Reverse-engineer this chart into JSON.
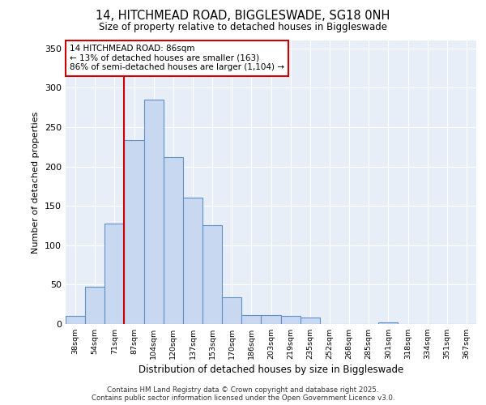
{
  "title1": "14, HITCHMEAD ROAD, BIGGLESWADE, SG18 0NH",
  "title2": "Size of property relative to detached houses in Biggleswade",
  "xlabel": "Distribution of detached houses by size in Biggleswade",
  "ylabel": "Number of detached properties",
  "categories": [
    "38sqm",
    "54sqm",
    "71sqm",
    "87sqm",
    "104sqm",
    "120sqm",
    "137sqm",
    "153sqm",
    "170sqm",
    "186sqm",
    "203sqm",
    "219sqm",
    "235sqm",
    "252sqm",
    "268sqm",
    "285sqm",
    "301sqm",
    "318sqm",
    "334sqm",
    "351sqm",
    "367sqm"
  ],
  "values": [
    10,
    47,
    128,
    233,
    285,
    212,
    160,
    125,
    34,
    11,
    11,
    10,
    8,
    0,
    0,
    0,
    2,
    0,
    0,
    0,
    0
  ],
  "bar_color": "#c8d8f0",
  "bar_edge_color": "#6090c8",
  "annotation_text": "14 HITCHMEAD ROAD: 86sqm\n← 13% of detached houses are smaller (163)\n86% of semi-detached houses are larger (1,104) →",
  "vline_color": "#cc0000",
  "annotation_box_edge": "#cc0000",
  "annotation_box_face": "#ffffff",
  "ylim": [
    0,
    360
  ],
  "yticks": [
    0,
    50,
    100,
    150,
    200,
    250,
    300,
    350
  ],
  "footer_text": "Contains HM Land Registry data © Crown copyright and database right 2025.\nContains public sector information licensed under the Open Government Licence v3.0.",
  "fig_bg_color": "#ffffff",
  "plot_bg_color": "#e8eef8",
  "grid_color": "#ffffff",
  "property_line_x": 2.5
}
